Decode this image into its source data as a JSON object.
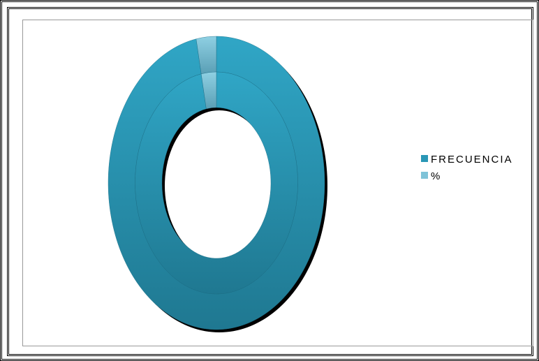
{
  "chart_data": {
    "type": "doughnut",
    "categories": [
      "FRECUENCIA",
      "%"
    ],
    "colors": [
      "#2a97b6",
      "#7fc3d8"
    ],
    "series": [
      {
        "values": [
          97,
          3
        ]
      },
      {
        "values": [
          97,
          3
        ]
      }
    ],
    "legend": "right"
  }
}
